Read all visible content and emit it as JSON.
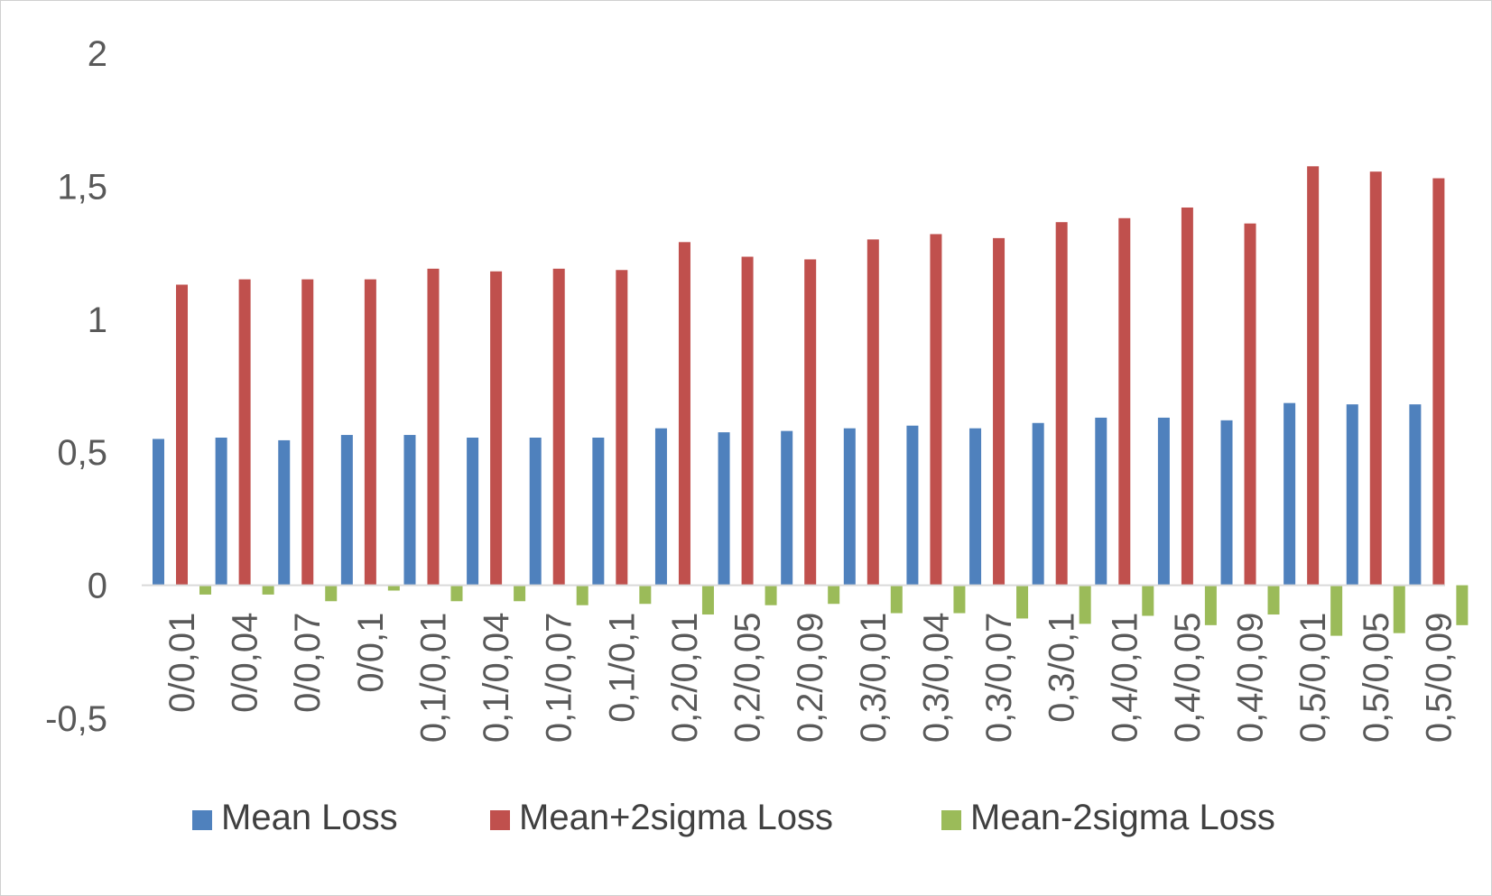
{
  "chart_data": {
    "type": "bar",
    "title": "",
    "xlabel": "",
    "ylabel": "",
    "ylim": [
      -0.5,
      2
    ],
    "yticks": [
      -0.5,
      0,
      0.5,
      1,
      1.5,
      2
    ],
    "ytick_labels": [
      "-0,5",
      "0",
      "0,5",
      "1",
      "1,5",
      "2"
    ],
    "grid": false,
    "legend_position": "bottom",
    "categories": [
      "0/0,01",
      "0/0,04",
      "0/0,07",
      "0/0,1",
      "0,1/0,01",
      "0,1/0,04",
      "0,1/0,07",
      "0,1/0,1",
      "0,2/0,01",
      "0,2/0,05",
      "0,2/0,09",
      "0,3/0,01",
      "0,3/0,04",
      "0,3/0,07",
      "0,3/0,1",
      "0,4/0,01",
      "0,4/0,05",
      "0,4/0,09",
      "0,5/0,01",
      "0,5/0,05",
      "0,5/0,09"
    ],
    "series": [
      {
        "name": "Mean Loss",
        "color": "#4f81bd",
        "values": [
          0.55,
          0.555,
          0.545,
          0.565,
          0.565,
          0.555,
          0.555,
          0.555,
          0.59,
          0.575,
          0.58,
          0.59,
          0.6,
          0.59,
          0.61,
          0.63,
          0.63,
          0.62,
          0.685,
          0.68,
          0.68
        ]
      },
      {
        "name": "Mean+2sigma Loss",
        "color": "#c0504d",
        "values": [
          1.13,
          1.15,
          1.15,
          1.15,
          1.19,
          1.18,
          1.19,
          1.185,
          1.29,
          1.235,
          1.225,
          1.3,
          1.32,
          1.305,
          1.365,
          1.38,
          1.42,
          1.36,
          1.575,
          1.555,
          1.53
        ]
      },
      {
        "name": "Mean-2sigma Loss",
        "color": "#9bbb59",
        "values": [
          -0.035,
          -0.035,
          -0.06,
          -0.02,
          -0.06,
          -0.06,
          -0.075,
          -0.07,
          -0.11,
          -0.075,
          -0.07,
          -0.105,
          -0.105,
          -0.125,
          -0.145,
          -0.115,
          -0.15,
          -0.11,
          -0.19,
          -0.18,
          -0.15
        ]
      }
    ]
  }
}
